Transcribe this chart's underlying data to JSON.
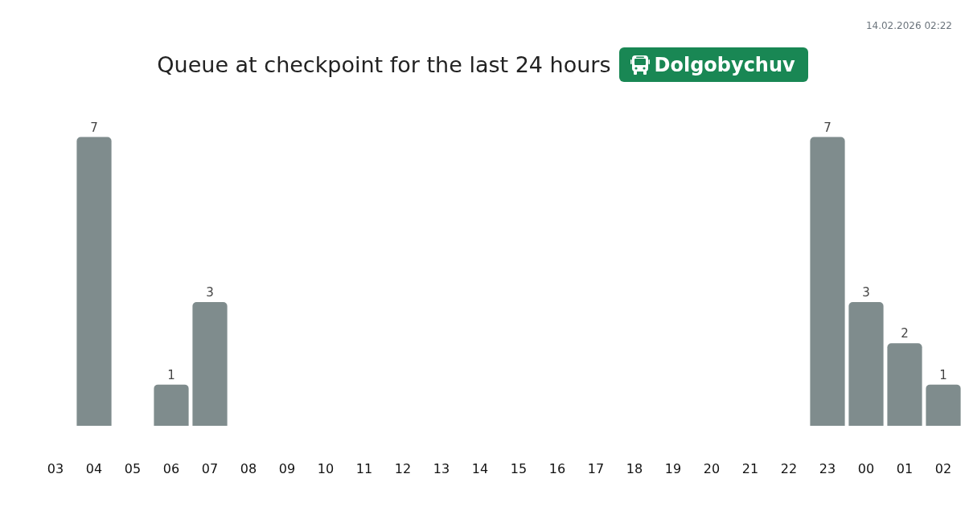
{
  "chart_data": {
    "type": "bar",
    "title": "Queue at checkpoint for the last 24 hours",
    "subtitle": "Dolgobychuv",
    "annotations": [
      "14.02.2026 02:22"
    ],
    "categories": [
      "03",
      "04",
      "05",
      "06",
      "07",
      "08",
      "09",
      "10",
      "11",
      "12",
      "13",
      "14",
      "15",
      "16",
      "17",
      "18",
      "19",
      "20",
      "21",
      "22",
      "23",
      "00",
      "01",
      "02"
    ],
    "values": [
      0,
      7,
      0,
      1,
      3,
      0,
      0,
      0,
      0,
      0,
      0,
      0,
      0,
      0,
      0,
      0,
      0,
      0,
      0,
      0,
      7,
      3,
      2,
      1
    ],
    "value_labels": [
      null,
      "7",
      null,
      "1",
      "3",
      null,
      null,
      null,
      null,
      null,
      null,
      null,
      null,
      null,
      null,
      null,
      null,
      null,
      null,
      null,
      "7",
      "3",
      "2",
      "1"
    ],
    "color": "#7f8c8d",
    "grid": false,
    "legend": false
  }
}
